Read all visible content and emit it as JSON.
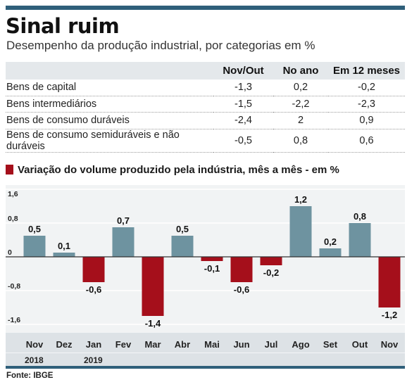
{
  "header": {
    "title": "Sinal ruim",
    "subtitle": "Desempenho da produção industrial, por categorias em %"
  },
  "summary_table": {
    "columns": [
      "Nov/Out",
      "No ano",
      "Em 12 meses"
    ],
    "rows": [
      {
        "label": "Bens de capital",
        "values": [
          "-1,3",
          "0,2",
          "-0,2"
        ]
      },
      {
        "label": "Bens intermediários",
        "values": [
          "-1,5",
          "-2,2",
          "-2,3"
        ]
      },
      {
        "label": "Bens de consumo duráveis",
        "values": [
          "-2,4",
          "2",
          "0,9"
        ]
      },
      {
        "label": "Bens de consumo semiduráveis e não duráveis",
        "values": [
          "-0,5",
          "0,8",
          "0,6"
        ]
      }
    ]
  },
  "chart_data": {
    "type": "bar",
    "title": "Variação do volume produzido pela indústria, mês a mês - em %",
    "categories": [
      "Nov",
      "Dez",
      "Jan",
      "Fev",
      "Mar",
      "Abr",
      "Mai",
      "Jun",
      "Jul",
      "Ago",
      "Set",
      "Out",
      "Nov"
    ],
    "years": [
      {
        "label": "2018",
        "start_index": 0
      },
      {
        "label": "2019",
        "start_index": 2
      }
    ],
    "values": [
      0.5,
      0.1,
      -0.6,
      0.7,
      -1.4,
      0.5,
      -0.1,
      -0.6,
      -0.2,
      1.2,
      0.2,
      0.8,
      -1.2
    ],
    "data_labels": [
      "0,5",
      "0,1",
      "-0,6",
      "0,7",
      "-1,4",
      "0,5",
      "-0,1",
      "-0,6",
      "-0,2",
      "1,2",
      "0,2",
      "0,8",
      "-1,2"
    ],
    "ylim": [
      -1.6,
      1.6
    ],
    "yticks": [
      1.6,
      0.8,
      0,
      -0.8,
      -1.6
    ],
    "ytick_labels": [
      "1,6",
      "0,8",
      "0",
      "-0,8",
      "-1,6"
    ],
    "grid": true,
    "colors": {
      "positive": "#6e93a0",
      "negative": "#a50f1b",
      "grid": "#ffffff",
      "zero_line": "#333333"
    }
  },
  "source": "Fonte: IBGE"
}
